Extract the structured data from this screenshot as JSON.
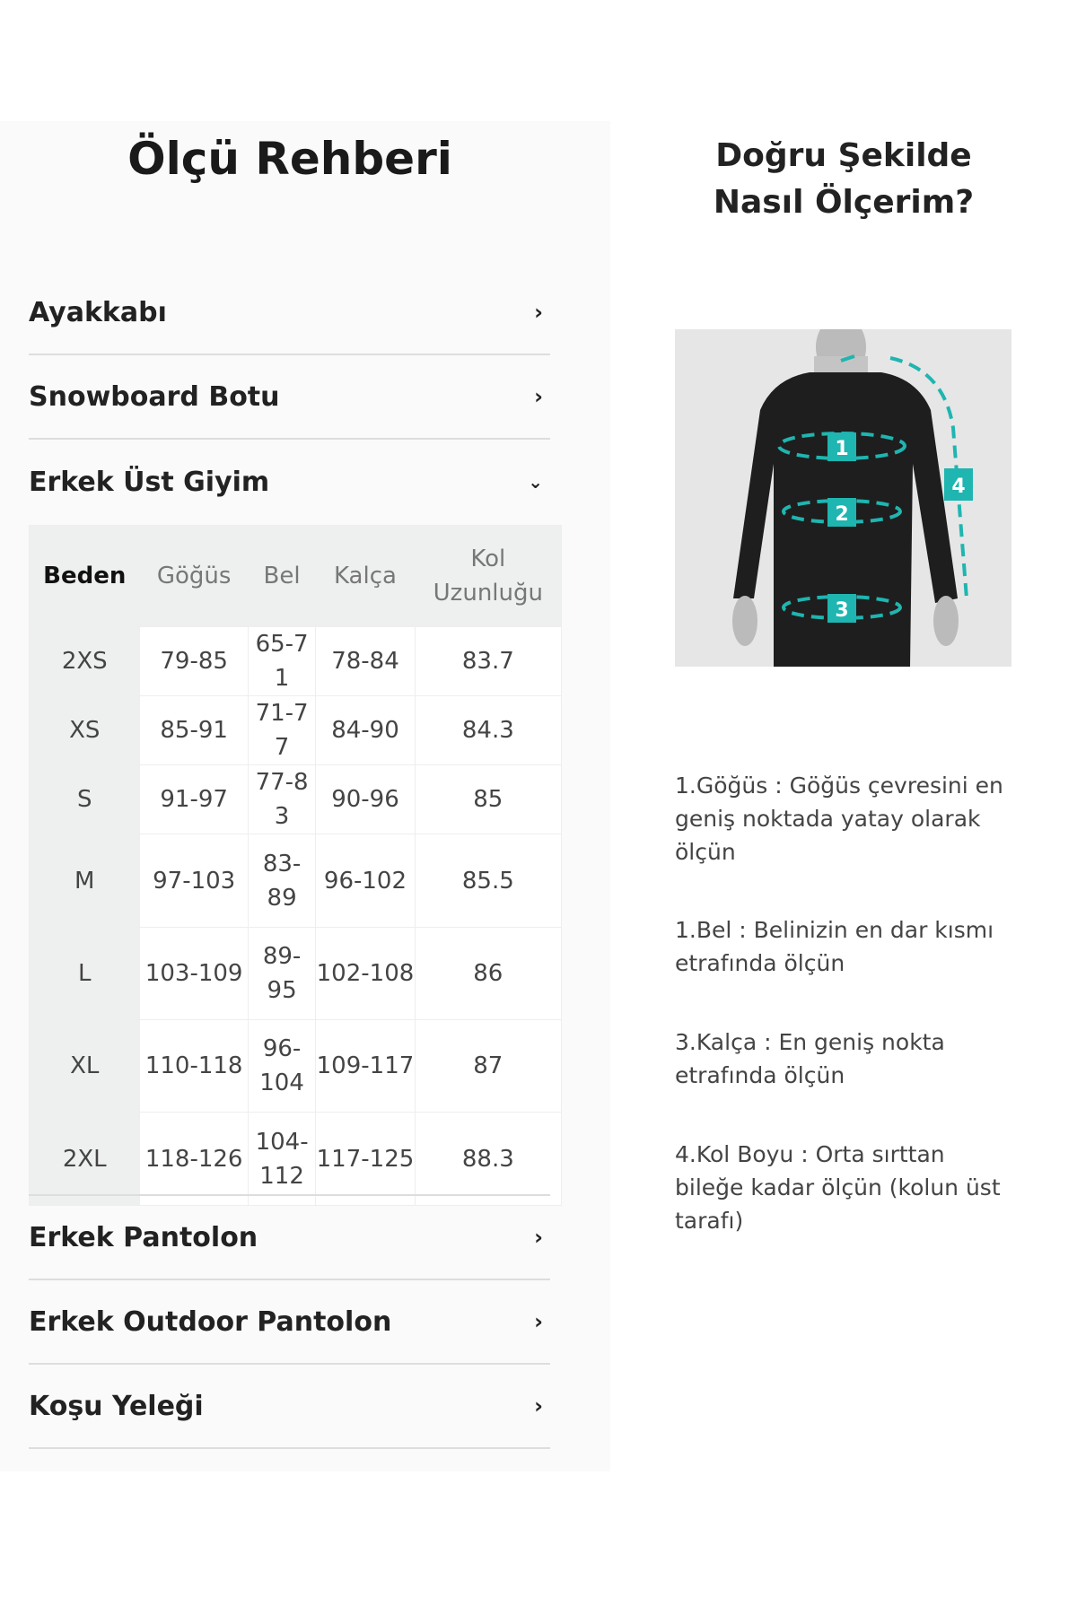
{
  "left": {
    "title": "Ölçü Rehberi",
    "accordions_top": [
      {
        "label": "Ayakkabı",
        "icon": "chevron-right-icon"
      },
      {
        "label": "Snowboard Botu",
        "icon": "chevron-right-icon"
      },
      {
        "label": "Erkek Üst Giyim",
        "icon": "chevron-down-icon"
      }
    ],
    "table": {
      "headers": [
        "Beden",
        "Göğüs",
        "Bel",
        "Kalça",
        "Kol Uzunluğu"
      ],
      "rows": [
        [
          "2XS",
          "79-85",
          "65-71",
          "78-84",
          "83.7"
        ],
        [
          "XS",
          "85-91",
          "71-77",
          "84-90",
          "84.3"
        ],
        [
          "S",
          "91-97",
          "77-83",
          "90-96",
          "85"
        ],
        [
          "M",
          "97-103",
          "83-89",
          "96-102",
          "85.5"
        ],
        [
          "L",
          "103-109",
          "89-95",
          "102-108",
          "86"
        ],
        [
          "XL",
          "110-118",
          "96-104",
          "109-117",
          "87"
        ],
        [
          "2XL",
          "118-126",
          "104-112",
          "117-125",
          "88.3"
        ]
      ]
    },
    "accordions_bottom": [
      {
        "label": "Erkek Pantolon",
        "icon": "chevron-right-icon"
      },
      {
        "label": "Erkek Outdoor Pantolon",
        "icon": "chevron-right-icon"
      },
      {
        "label": "Koşu Yeleği",
        "icon": "chevron-right-icon"
      }
    ]
  },
  "right": {
    "title": "Doğru Şekilde Nasıl Ölçerim?",
    "figure_labels": [
      "1",
      "2",
      "3",
      "4"
    ],
    "accent": "#1fb5b0",
    "descriptions": [
      "1.Göğüs : Göğüs çevresini en geniş noktada yatay olarak ölçün",
      "1.Bel : Belinizin en dar kısmı etrafında ölçün",
      "3.Kalça : En geniş nokta etrafında ölçün",
      "4.Kol Boyu : Orta sırttan bileğe kadar ölçün (kolun üst tarafı)"
    ]
  }
}
